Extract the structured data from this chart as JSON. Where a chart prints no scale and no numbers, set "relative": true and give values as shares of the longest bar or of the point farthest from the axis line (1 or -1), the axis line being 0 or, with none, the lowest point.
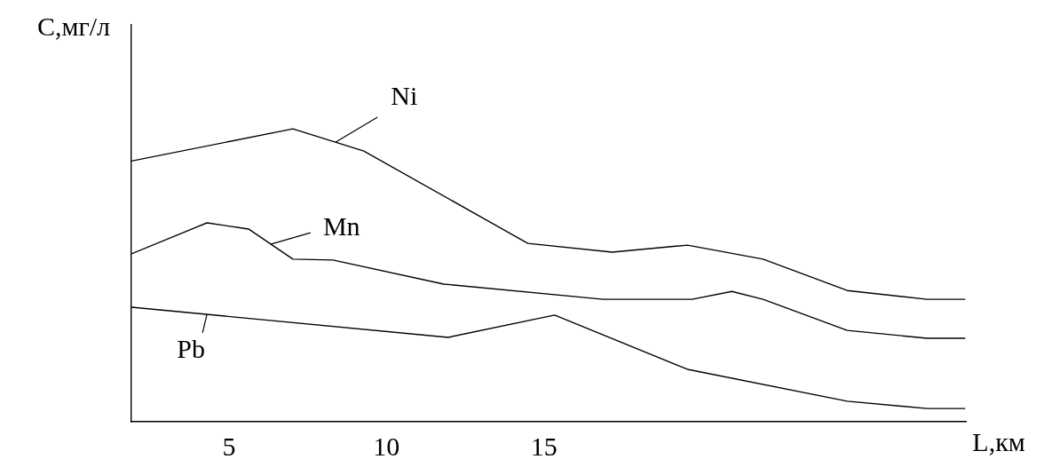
{
  "chart_data": {
    "type": "line",
    "relative": true,
    "xlabel": "L,км",
    "ylabel": "C,мг/л",
    "xlim": [
      1.9,
      28.4
    ],
    "xticks": [
      5,
      10,
      15
    ],
    "grid": false,
    "legend": false,
    "marker": "none",
    "line_style": "solid",
    "series": [
      {
        "color": "#000000",
        "x": [
          1.9,
          7.03,
          9.28,
          14.49,
          17.17,
          19.56,
          21.96,
          24.63,
          27.17,
          28.38
        ],
        "values": [
          0.89,
          1,
          0.924,
          0.609,
          0.579,
          0.603,
          0.555,
          0.448,
          0.418,
          0.418
        ]
      },
      {
        "color": "#000000",
        "x": [
          1.9,
          4.3,
          5.62,
          7.03,
          8.3,
          11.82,
          16.89,
          19.7,
          20.97,
          21.96,
          24.63,
          27.17,
          28.38
        ],
        "values": [
          0.573,
          0.679,
          0.658,
          0.555,
          0.552,
          0.47,
          0.418,
          0.418,
          0.445,
          0.418,
          0.312,
          0.285,
          0.285
        ]
      },
      {
        "color": "#000000",
        "x": [
          1.9,
          11.96,
          15.34,
          19.56,
          24.63,
          27.17,
          28.38
        ],
        "values": [
          0.391,
          0.288,
          0.364,
          0.179,
          0.07,
          0.045,
          0.045
        ]
      }
    ],
    "annotations": [
      {
        "text": "Ni",
        "x": 8.39,
        "y": 0.955
      },
      {
        "text": "Mn",
        "x": 6.32,
        "y": 0.606
      },
      {
        "text": "Pb",
        "x": 4.3,
        "y": 0.367
      }
    ]
  }
}
